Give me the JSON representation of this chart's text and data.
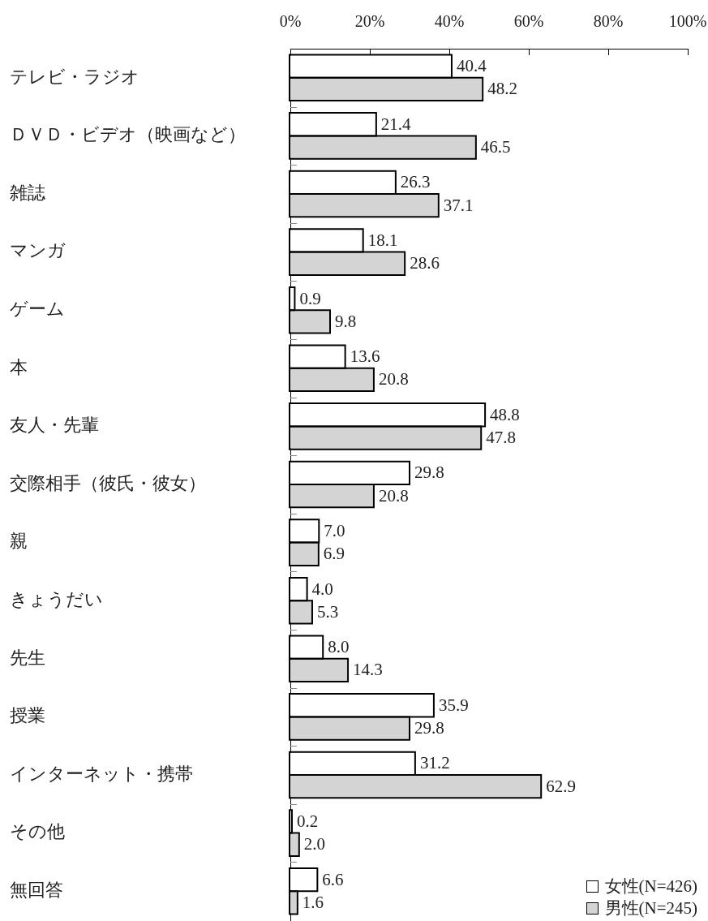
{
  "chart_data": {
    "type": "bar",
    "orientation": "horizontal",
    "categories": [
      "テレビ・ラジオ",
      "ＤＶＤ・ビデオ（映画など）",
      "雑誌",
      "マンガ",
      "ゲーム",
      "本",
      "友人・先輩",
      "交際相手（彼氏・彼女）",
      "親",
      "きょうだい",
      "先生",
      "授業",
      "インターネット・携帯",
      "その他",
      "無回答"
    ],
    "series": [
      {
        "name": "女性(N=426)",
        "color": "#ffffff",
        "values": [
          40.4,
          21.4,
          26.3,
          18.1,
          0.9,
          13.6,
          48.8,
          29.8,
          7.0,
          4.0,
          8.0,
          35.9,
          31.2,
          0.2,
          6.6
        ],
        "value_labels": [
          "40.4",
          "21.4",
          "26.3",
          "18.1",
          "0.9",
          "13.6",
          "48.8",
          "29.8",
          "7.0",
          "4.0",
          "8.0",
          "35.9",
          "31.2",
          "0.2",
          "6.6"
        ]
      },
      {
        "name": "男性(N=245)",
        "color": "#d4d4d4",
        "values": [
          48.2,
          46.5,
          37.1,
          28.6,
          9.8,
          20.8,
          47.8,
          20.8,
          6.9,
          5.3,
          14.3,
          29.8,
          62.9,
          2.0,
          1.6
        ],
        "value_labels": [
          "48.2",
          "46.5",
          "37.1",
          "28.6",
          "9.8",
          "20.8",
          "47.8",
          "20.8",
          "6.9",
          "5.3",
          "14.3",
          "29.8",
          "62.9",
          "2.0",
          "1.6"
        ]
      }
    ],
    "xlim": [
      0,
      100
    ],
    "xticks": [
      {
        "value": 0,
        "label": "0%"
      },
      {
        "value": 20,
        "label": "20%"
      },
      {
        "value": 40,
        "label": "40%"
      },
      {
        "value": 60,
        "label": "60%"
      },
      {
        "value": 80,
        "label": "80%"
      },
      {
        "value": 100,
        "label": "100%"
      }
    ],
    "legend": "bottom right"
  }
}
